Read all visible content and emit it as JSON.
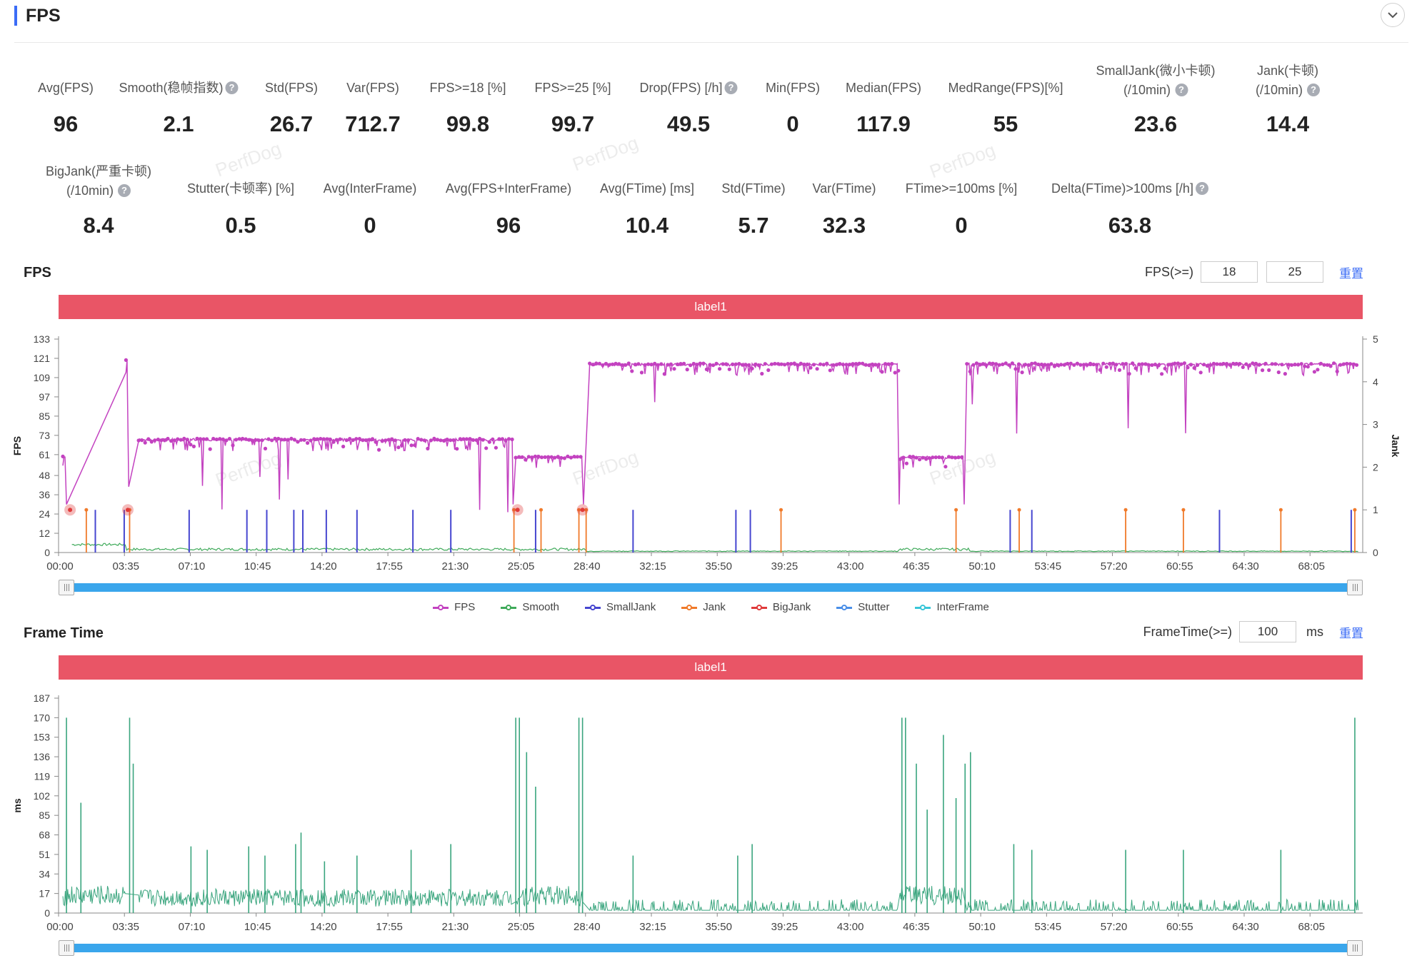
{
  "header": {
    "title": "FPS",
    "accent": "#3b6cf6",
    "collapse_icon": "chevron-down-icon"
  },
  "metrics_row1": [
    {
      "label": "Avg(FPS)",
      "value": "96",
      "help": false
    },
    {
      "label": "Smooth(稳帧指数)",
      "value": "2.1",
      "help": true
    },
    {
      "label": "Std(FPS)",
      "value": "26.7",
      "help": false
    },
    {
      "label": "Var(FPS)",
      "value": "712.7",
      "help": false
    },
    {
      "label": "FPS>=18 [%]",
      "value": "99.8",
      "help": false
    },
    {
      "label": "FPS>=25 [%]",
      "value": "99.7",
      "help": false
    },
    {
      "label": "Drop(FPS) [/h]",
      "value": "49.5",
      "help": true
    },
    {
      "label": "Min(FPS)",
      "value": "0",
      "help": false
    },
    {
      "label": "Median(FPS)",
      "value": "117.9",
      "help": false
    },
    {
      "label": "MedRange(FPS)[%]",
      "value": "55",
      "help": false
    },
    {
      "label": "SmallJank(微小卡顿)",
      "label2": "(/10min)",
      "value": "23.6",
      "help": true
    },
    {
      "label": "Jank(卡顿)",
      "label2": "(/10min)",
      "value": "14.4",
      "help": true
    }
  ],
  "metrics_row2": [
    {
      "label": "BigJank(严重卡顿)",
      "label2": "(/10min)",
      "value": "8.4",
      "help": true
    },
    {
      "label": "Stutter(卡顿率) [%]",
      "value": "0.5",
      "help": false
    },
    {
      "label": "Avg(InterFrame)",
      "value": "0",
      "help": false
    },
    {
      "label": "Avg(FPS+InterFrame)",
      "value": "96",
      "help": false
    },
    {
      "label": "Avg(FTime) [ms]",
      "value": "10.4",
      "help": false
    },
    {
      "label": "Std(FTime)",
      "value": "5.7",
      "help": false
    },
    {
      "label": "Var(FTime)",
      "value": "32.3",
      "help": false
    },
    {
      "label": "FTime>=100ms [%]",
      "value": "0",
      "help": false
    },
    {
      "label": "Delta(FTime)>100ms [/h]",
      "value": "63.8",
      "help": true
    }
  ],
  "watermark": "PerfDog",
  "fps_chart": {
    "title": "FPS",
    "threshold_label": "FPS(>=)",
    "threshold1": "18",
    "threshold2": "25",
    "reset_label": "重置",
    "band_label": "label1"
  },
  "frametime_chart": {
    "title": "Frame Time",
    "threshold_label": "FrameTime(>=)",
    "threshold": "100",
    "unit": "ms",
    "reset_label": "重置",
    "band_label": "label1"
  },
  "legend": [
    {
      "name": "FPS",
      "color": "#c342c0"
    },
    {
      "name": "Smooth",
      "color": "#3faa5a"
    },
    {
      "name": "SmallJank",
      "color": "#4646d0"
    },
    {
      "name": "Jank",
      "color": "#f07a2a"
    },
    {
      "name": "BigJank",
      "color": "#e03b3b"
    },
    {
      "name": "Stutter",
      "color": "#4a8fe8"
    },
    {
      "name": "InterFrame",
      "color": "#38c6d8"
    }
  ],
  "chart_data": [
    {
      "type": "line",
      "title": "FPS",
      "ylabel": "FPS",
      "y2label": "Jank",
      "ylim": [
        0,
        133
      ],
      "y2lim": [
        0,
        5
      ],
      "yticks": [
        "0",
        "12",
        "24",
        "36",
        "48",
        "61",
        "73",
        "85",
        "97",
        "109",
        "121",
        "133"
      ],
      "y2ticks": [
        "0",
        "1",
        "2",
        "3",
        "4",
        "5"
      ],
      "xticks": [
        "00:00",
        "03:35",
        "07:10",
        "10:45",
        "14:20",
        "17:55",
        "21:30",
        "25:05",
        "28:40",
        "32:15",
        "35:50",
        "39:25",
        "43:00",
        "46:35",
        "50:10",
        "53:45",
        "57:20",
        "60:55",
        "64:30",
        "68:05"
      ],
      "x_range_min": [
        0,
        71.8
      ],
      "series": [
        {
          "name": "FPS",
          "color": "#c342c0",
          "segments": [
            [
              0,
              0.15,
              60
            ],
            [
              3.5,
              3.6,
              120
            ],
            [
              4.2,
              24.9,
              71
            ],
            [
              25.1,
              28.8,
              60
            ],
            [
              29.2,
              46.3,
              117.9
            ],
            [
              46.4,
              49.9,
              60
            ],
            [
              50.1,
              71.8,
              118
            ]
          ]
        },
        {
          "name": "Smooth",
          "color": "#3faa5a",
          "approx_value": 2
        },
        {
          "name": "SmallJank",
          "color": "#4646d0",
          "spikes_min": [
            1.8,
            3.4,
            7,
            10.2,
            11.3,
            12.8,
            13.3,
            14.6,
            16.3,
            19.4,
            21.5,
            26.2,
            31.6,
            37.3,
            38.1,
            52.5,
            53.7,
            64.1,
            71.4
          ]
        },
        {
          "name": "Jank",
          "color": "#f07a2a",
          "spikes_min": [
            1.3,
            3.7,
            25.0,
            26.5,
            28.6,
            29.0,
            39.8,
            49.5,
            53.0,
            58.9,
            62.1,
            67.5,
            71.6
          ]
        },
        {
          "name": "BigJank",
          "color": "#e03b3b",
          "events_min": [
            0.4,
            3.6,
            25.2,
            28.8
          ]
        },
        {
          "name": "Stutter",
          "color": "#4a8fe8"
        },
        {
          "name": "InterFrame",
          "color": "#38c6d8"
        }
      ]
    },
    {
      "type": "line",
      "title": "Frame Time",
      "ylabel": "ms",
      "ylim": [
        0,
        187
      ],
      "yticks": [
        "0",
        "17",
        "34",
        "51",
        "68",
        "85",
        "102",
        "119",
        "136",
        "153",
        "170",
        "187"
      ],
      "xticks": [
        "00:00",
        "03:35",
        "07:10",
        "10:45",
        "14:20",
        "17:55",
        "21:30",
        "25:05",
        "28:40",
        "32:15",
        "35:50",
        "39:25",
        "43:00",
        "46:35",
        "50:10",
        "53:45",
        "57:20",
        "60:55",
        "64:30",
        "68:05"
      ],
      "series": [
        {
          "name": "Frame Time",
          "color": "#3aa57e",
          "baseline_segments": [
            [
              0,
              3.5,
              16
            ],
            [
              4.2,
              24.9,
              14
            ],
            [
              25.1,
              28.8,
              16
            ],
            [
              29.2,
              46.3,
              8
            ],
            [
              46.4,
              49.9,
              16
            ],
            [
              50.1,
              71.8,
              8
            ]
          ],
          "spikes": [
            [
              0.2,
              170
            ],
            [
              1.0,
              96
            ],
            [
              3.7,
              170
            ],
            [
              3.9,
              130
            ],
            [
              7.1,
              58
            ],
            [
              8.0,
              55
            ],
            [
              10.3,
              58
            ],
            [
              11.2,
              50
            ],
            [
              12.9,
              60
            ],
            [
              13.2,
              70
            ],
            [
              14.5,
              45
            ],
            [
              16.3,
              50
            ],
            [
              19.3,
              55
            ],
            [
              21.5,
              60
            ],
            [
              25.1,
              170
            ],
            [
              25.3,
              170
            ],
            [
              25.7,
              140
            ],
            [
              26.2,
              110
            ],
            [
              28.6,
              170
            ],
            [
              28.8,
              170
            ],
            [
              31.6,
              50
            ],
            [
              37.4,
              50
            ],
            [
              38.2,
              60
            ],
            [
              46.5,
              170
            ],
            [
              46.7,
              170
            ],
            [
              47.3,
              130
            ],
            [
              47.9,
              90
            ],
            [
              48.8,
              155
            ],
            [
              49.5,
              100
            ],
            [
              50.0,
              130
            ],
            [
              50.3,
              140
            ],
            [
              52.7,
              60
            ],
            [
              53.7,
              55
            ],
            [
              58.9,
              55
            ],
            [
              62.1,
              55
            ],
            [
              67.5,
              55
            ],
            [
              71.6,
              170
            ]
          ]
        }
      ]
    }
  ]
}
